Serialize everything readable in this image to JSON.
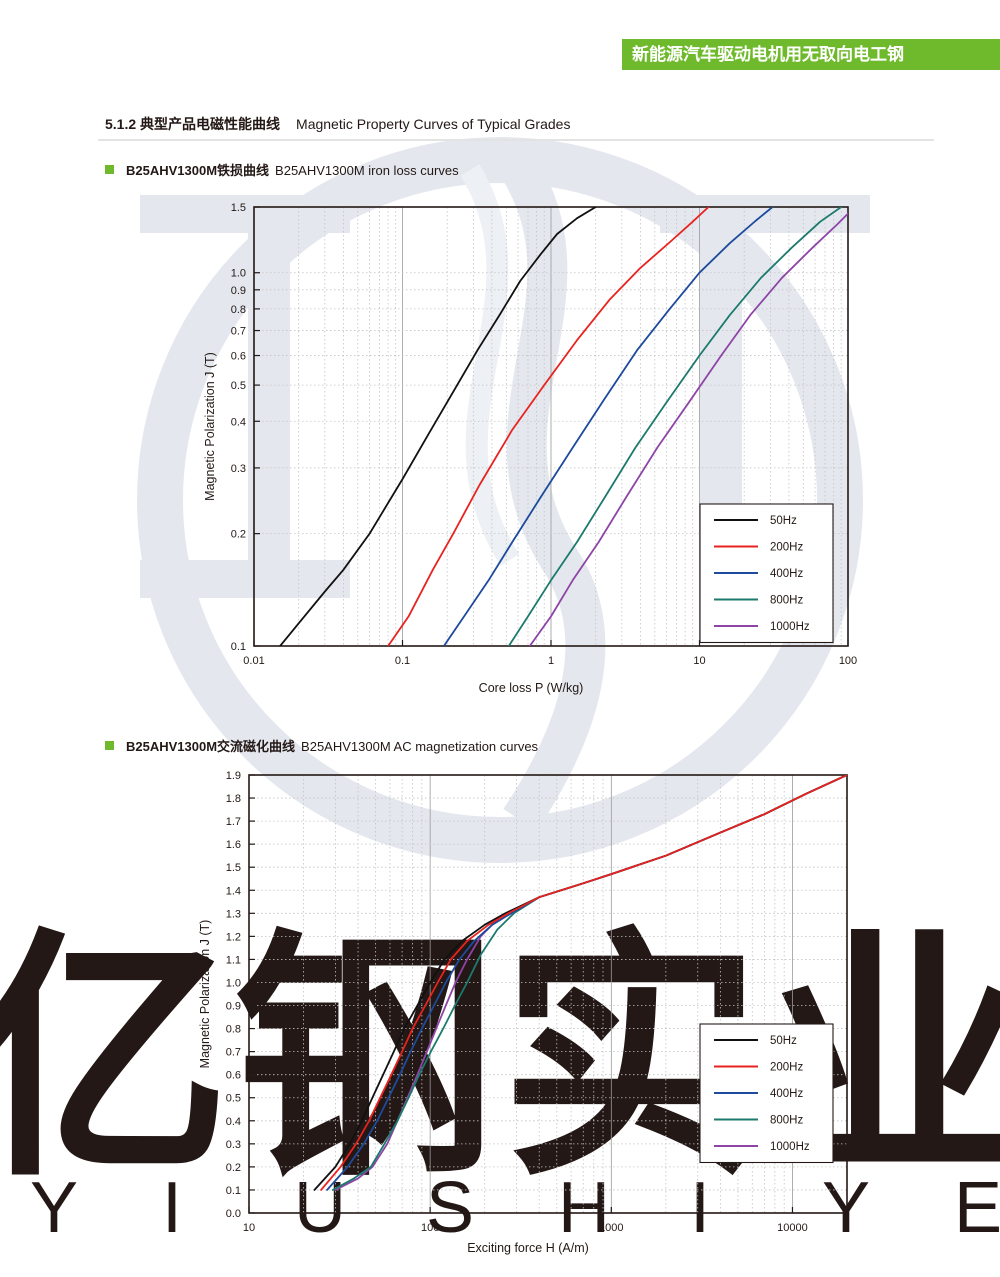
{
  "header": {
    "title": "新能源汽车驱动电机用无取向电工钢"
  },
  "section": {
    "number_cn": "5.1.2 典型产品电磁性能曲线",
    "title_en": "Magnetic Property Curves of Typical Grades"
  },
  "watermark": {
    "cn": "亿钢实业",
    "letters": [
      "Y",
      "I",
      "U",
      "S",
      "H",
      "I",
      "Y",
      "E"
    ]
  },
  "colors": {
    "accent": "#6fba2c",
    "50Hz": "#111111",
    "200Hz": "#e8231f",
    "400Hz": "#1d4a9c",
    "800Hz": "#1c7a6c",
    "1000Hz": "#8e44a6"
  },
  "chart_data": [
    {
      "type": "line",
      "heading_cn": "B25AHV1300M铁损曲线",
      "heading_en": "B25AHV1300M iron loss curves",
      "xlabel": "Core  loss P (W/kg)",
      "ylabel": "Magnetic Polarization J (T)",
      "xscale": "log",
      "yscale": "log",
      "xlim": [
        0.01,
        100
      ],
      "ylim": [
        0.1,
        1.5
      ],
      "xticks": [
        "0.01",
        "0.1",
        "1",
        "10",
        "100"
      ],
      "yticks": [
        "0.1",
        "0.2",
        "0.3",
        "0.4",
        "0.5",
        "0.6",
        "0.7",
        "0.8",
        "0.9",
        "1.0",
        "1.5"
      ],
      "grid": true,
      "legend_position": "bottom-right",
      "series": [
        {
          "name": "50Hz",
          "x": [
            0.015,
            0.02,
            0.03,
            0.04,
            0.06,
            0.1,
            0.15,
            0.22,
            0.32,
            0.45,
            0.62,
            0.85,
            1.1,
            1.5,
            2.0
          ],
          "y": [
            0.1,
            0.115,
            0.14,
            0.16,
            0.2,
            0.28,
            0.37,
            0.48,
            0.62,
            0.77,
            0.95,
            1.12,
            1.27,
            1.4,
            1.5
          ]
        },
        {
          "name": "200Hz",
          "x": [
            0.08,
            0.11,
            0.16,
            0.22,
            0.33,
            0.55,
            0.9,
            1.5,
            2.5,
            4,
            6.5,
            9,
            11.5
          ],
          "y": [
            0.1,
            0.12,
            0.16,
            0.2,
            0.27,
            0.38,
            0.5,
            0.66,
            0.85,
            1.03,
            1.22,
            1.37,
            1.5
          ]
        },
        {
          "name": "400Hz",
          "x": [
            0.19,
            0.26,
            0.38,
            0.55,
            0.85,
            1.4,
            2.3,
            3.8,
            6.3,
            10,
            16,
            24,
            31
          ],
          "y": [
            0.1,
            0.12,
            0.15,
            0.19,
            0.25,
            0.34,
            0.46,
            0.62,
            0.8,
            1.0,
            1.2,
            1.38,
            1.5
          ]
        },
        {
          "name": "800Hz",
          "x": [
            0.52,
            0.7,
            1.0,
            1.5,
            2.3,
            3.7,
            6,
            10,
            16,
            26,
            42,
            65,
            90
          ],
          "y": [
            0.1,
            0.12,
            0.15,
            0.19,
            0.25,
            0.34,
            0.45,
            0.6,
            0.77,
            0.97,
            1.17,
            1.37,
            1.5
          ]
        },
        {
          "name": "1000Hz",
          "x": [
            0.72,
            1.0,
            1.4,
            2.1,
            3.2,
            5.2,
            8.5,
            14,
            22,
            36,
            58,
            85,
            100
          ],
          "y": [
            0.1,
            0.12,
            0.15,
            0.19,
            0.25,
            0.34,
            0.45,
            0.6,
            0.77,
            0.97,
            1.17,
            1.35,
            1.44
          ]
        }
      ]
    },
    {
      "type": "line",
      "heading_cn": "B25AHV1300M交流磁化曲线",
      "heading_en": "B25AHV1300M AC magnetization curves",
      "xlabel": "Exciting force H (A/m)",
      "ylabel": "Magnetic Polarization J (T)",
      "xscale": "log",
      "yscale": "linear",
      "xlim": [
        10,
        20000
      ],
      "ylim": [
        0,
        1.9
      ],
      "xticks": [
        "10",
        "100",
        "1000",
        "10000"
      ],
      "yticks": [
        "0.0",
        "0.1",
        "0.2",
        "0.3",
        "0.4",
        "0.5",
        "0.6",
        "0.7",
        "0.8",
        "0.9",
        "1.0",
        "1.1",
        "1.2",
        "1.3",
        "1.4",
        "1.5",
        "1.6",
        "1.7",
        "1.8",
        "1.9"
      ],
      "grid": true,
      "legend_position": "bottom-right",
      "series": [
        {
          "name": "50Hz",
          "x": [
            23,
            30,
            36,
            42,
            48,
            55,
            63,
            72,
            85,
            100,
            120,
            150,
            200,
            260,
            400,
            700,
            1000,
            2000,
            4000,
            7000,
            12000,
            20000
          ],
          "y": [
            0.1,
            0.2,
            0.3,
            0.4,
            0.5,
            0.6,
            0.7,
            0.8,
            0.9,
            1.0,
            1.1,
            1.18,
            1.25,
            1.3,
            1.37,
            1.43,
            1.47,
            1.55,
            1.65,
            1.73,
            1.82,
            1.9
          ]
        },
        {
          "name": "200Hz",
          "x": [
            25,
            32,
            39,
            46,
            53,
            61,
            70,
            80,
            94,
            110,
            130,
            160,
            210,
            270,
            400,
            700,
            1000,
            2000,
            4000,
            7000,
            12000,
            20000
          ],
          "y": [
            0.1,
            0.2,
            0.3,
            0.4,
            0.5,
            0.6,
            0.7,
            0.8,
            0.9,
            1.0,
            1.1,
            1.18,
            1.25,
            1.3,
            1.37,
            1.43,
            1.47,
            1.55,
            1.65,
            1.73,
            1.82,
            1.9
          ]
        },
        {
          "name": "400Hz",
          "x": [
            27,
            35,
            43,
            51,
            59,
            68,
            78,
            90,
            105,
            122,
            145,
            175,
            220,
            280,
            400,
            700,
            1000,
            2000,
            4000,
            7000,
            12000,
            20000
          ],
          "y": [
            0.1,
            0.2,
            0.3,
            0.4,
            0.5,
            0.6,
            0.7,
            0.8,
            0.9,
            1.0,
            1.1,
            1.18,
            1.25,
            1.3,
            1.37,
            1.43,
            1.47,
            1.55,
            1.65,
            1.73,
            1.82,
            1.9
          ]
        },
        {
          "name": "800Hz",
          "x": [
            29,
            38,
            47,
            56,
            66,
            76,
            87,
            101,
            118,
            137,
            160,
            190,
            235,
            290,
            400,
            700,
            1000,
            2000,
            4000,
            7000,
            12000,
            20000
          ],
          "y": [
            0.1,
            0.15,
            0.2,
            0.3,
            0.4,
            0.5,
            0.6,
            0.7,
            0.8,
            0.9,
            1.0,
            1.12,
            1.23,
            1.3,
            1.37,
            1.43,
            1.47,
            1.55,
            1.65,
            1.73,
            1.82,
            1.9
          ]
        },
        {
          "name": "1000Hz",
          "x": [
            30,
            40,
            48,
            58,
            66,
            75,
            85,
            96,
            108,
            122,
            138,
            160,
            190,
            240,
            300,
            400,
            700,
            1000,
            2000,
            4000,
            7000,
            12000,
            20000
          ],
          "y": [
            0.1,
            0.15,
            0.2,
            0.3,
            0.4,
            0.5,
            0.6,
            0.7,
            0.8,
            0.9,
            1.0,
            1.1,
            1.2,
            1.28,
            1.32,
            1.37,
            1.43,
            1.47,
            1.55,
            1.65,
            1.73,
            1.82,
            1.9
          ]
        }
      ]
    }
  ]
}
